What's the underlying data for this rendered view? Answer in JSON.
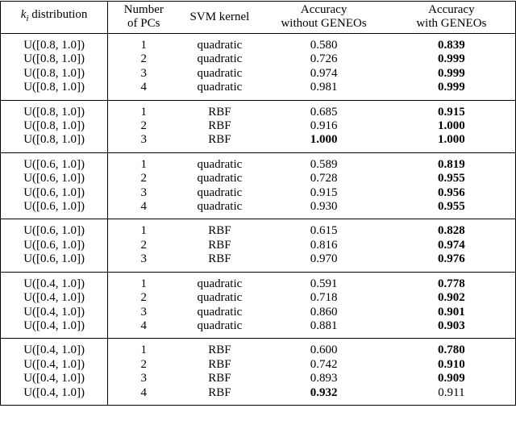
{
  "table": {
    "header": [
      {
        "var": "k",
        "sub": "i",
        "text": "distribution"
      },
      {
        "lines": [
          "Number",
          "of PCs"
        ]
      },
      {
        "lines": [
          "SVM kernel"
        ]
      },
      {
        "lines": [
          "Accuracy",
          "without GENEOs"
        ]
      },
      {
        "lines": [
          "Accuracy",
          "with GENEOs"
        ]
      }
    ],
    "groups": [
      {
        "rows": [
          {
            "cells": [
              "U([0.8, 1.0])",
              "1",
              "quadratic",
              "0.580",
              "0.839"
            ],
            "bold": [
              4
            ]
          },
          {
            "cells": [
              "U([0.8, 1.0])",
              "2",
              "quadratic",
              "0.726",
              "0.999"
            ],
            "bold": [
              4
            ]
          },
          {
            "cells": [
              "U([0.8, 1.0])",
              "3",
              "quadratic",
              "0.974",
              "0.999"
            ],
            "bold": [
              4
            ]
          },
          {
            "cells": [
              "U([0.8, 1.0])",
              "4",
              "quadratic",
              "0.981",
              "0.999"
            ],
            "bold": [
              4
            ]
          }
        ]
      },
      {
        "rows": [
          {
            "cells": [
              "U([0.8, 1.0])",
              "1",
              "RBF",
              "0.685",
              "0.915"
            ],
            "bold": [
              4
            ]
          },
          {
            "cells": [
              "U([0.8, 1.0])",
              "2",
              "RBF",
              "0.916",
              "1.000"
            ],
            "bold": [
              4
            ]
          },
          {
            "cells": [
              "U([0.8, 1.0])",
              "3",
              "RBF",
              "1.000",
              "1.000"
            ],
            "bold": [
              3,
              4
            ]
          }
        ]
      },
      {
        "rows": [
          {
            "cells": [
              "U([0.6, 1.0])",
              "1",
              "quadratic",
              "0.589",
              "0.819"
            ],
            "bold": [
              4
            ]
          },
          {
            "cells": [
              "U([0.6, 1.0])",
              "2",
              "quadratic",
              "0.728",
              "0.955"
            ],
            "bold": [
              4
            ]
          },
          {
            "cells": [
              "U([0.6, 1.0])",
              "3",
              "quadratic",
              "0.915",
              "0.956"
            ],
            "bold": [
              4
            ]
          },
          {
            "cells": [
              "U([0.6, 1.0])",
              "4",
              "quadratic",
              "0.930",
              "0.955"
            ],
            "bold": [
              4
            ]
          }
        ]
      },
      {
        "rows": [
          {
            "cells": [
              "U([0.6, 1.0])",
              "1",
              "RBF",
              "0.615",
              "0.828"
            ],
            "bold": [
              4
            ]
          },
          {
            "cells": [
              "U([0.6, 1.0])",
              "2",
              "RBF",
              "0.816",
              "0.974"
            ],
            "bold": [
              4
            ]
          },
          {
            "cells": [
              "U([0.6, 1.0])",
              "3",
              "RBF",
              "0.970",
              "0.976"
            ],
            "bold": [
              4
            ]
          }
        ]
      },
      {
        "rows": [
          {
            "cells": [
              "U([0.4, 1.0])",
              "1",
              "quadratic",
              "0.591",
              "0.778"
            ],
            "bold": [
              4
            ]
          },
          {
            "cells": [
              "U([0.4, 1.0])",
              "2",
              "quadratic",
              "0.718",
              "0.902"
            ],
            "bold": [
              4
            ]
          },
          {
            "cells": [
              "U([0.4, 1.0])",
              "3",
              "quadratic",
              "0.860",
              "0.901"
            ],
            "bold": [
              4
            ]
          },
          {
            "cells": [
              "U([0.4, 1.0])",
              "4",
              "quadratic",
              "0.881",
              "0.903"
            ],
            "bold": [
              4
            ]
          }
        ]
      },
      {
        "rows": [
          {
            "cells": [
              "U([0.4, 1.0])",
              "1",
              "RBF",
              "0.600",
              "0.780"
            ],
            "bold": [
              4
            ]
          },
          {
            "cells": [
              "U([0.4, 1.0])",
              "2",
              "RBF",
              "0.742",
              "0.910"
            ],
            "bold": [
              4
            ]
          },
          {
            "cells": [
              "U([0.4, 1.0])",
              "3",
              "RBF",
              "0.893",
              "0.909"
            ],
            "bold": [
              4
            ]
          },
          {
            "cells": [
              "U([0.4, 1.0])",
              "4",
              "RBF",
              "0.932",
              "0.911"
            ],
            "bold": [
              3
            ]
          }
        ]
      }
    ]
  }
}
